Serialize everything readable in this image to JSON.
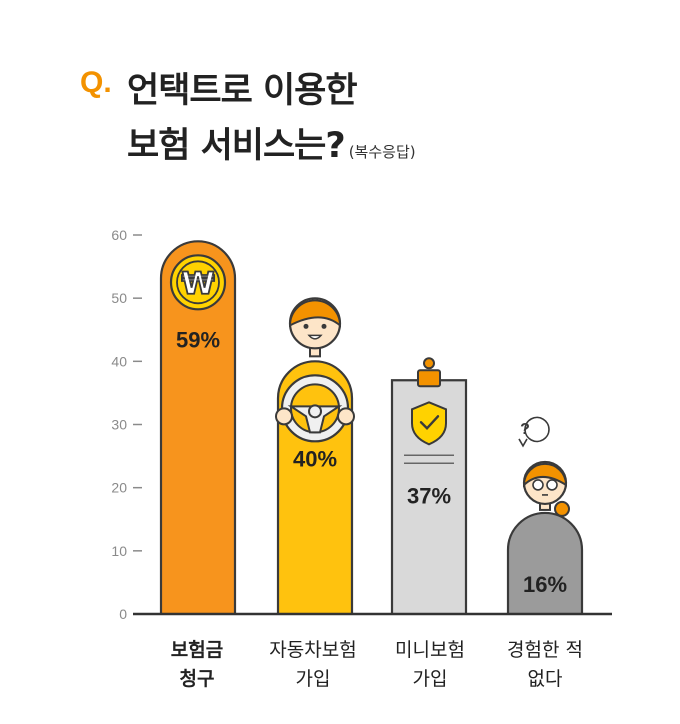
{
  "title": {
    "prefix": "Q.",
    "line1": "언택트로 이용한",
    "line2": "보험 서비스는?",
    "note": "(복수응답)"
  },
  "colors": {
    "accent": "#f39200",
    "bar_1": "#f7941d",
    "bar_2": "#ffc20e",
    "bar_3": "#d9d9d9",
    "bar_4": "#9b9b9b",
    "outline": "#3a3a3a"
  },
  "chart_data": {
    "type": "bar",
    "categories": [
      "보험금\n청구",
      "자동차보험\n가입",
      "미니보험\n가입",
      "경험한 적\n없다"
    ],
    "values": [
      59,
      40,
      37,
      16
    ],
    "value_labels": [
      "59%",
      "40%",
      "37%",
      "16%"
    ],
    "yticks": [
      0,
      10,
      20,
      30,
      40,
      50,
      60
    ],
    "ylim": [
      0,
      60
    ],
    "icons": [
      "won-coin-icon",
      "person-steering-wheel-icon",
      "clipboard-shield-check-icon",
      "person-question-icon"
    ],
    "question_glyph": "?"
  },
  "x_labels": [
    {
      "line1": "보험금",
      "line2": "청구"
    },
    {
      "line1": "자동차보험",
      "line2": "가입"
    },
    {
      "line1": "미니보험",
      "line2": "가입"
    },
    {
      "line1": "경험한 적",
      "line2": "없다"
    }
  ]
}
